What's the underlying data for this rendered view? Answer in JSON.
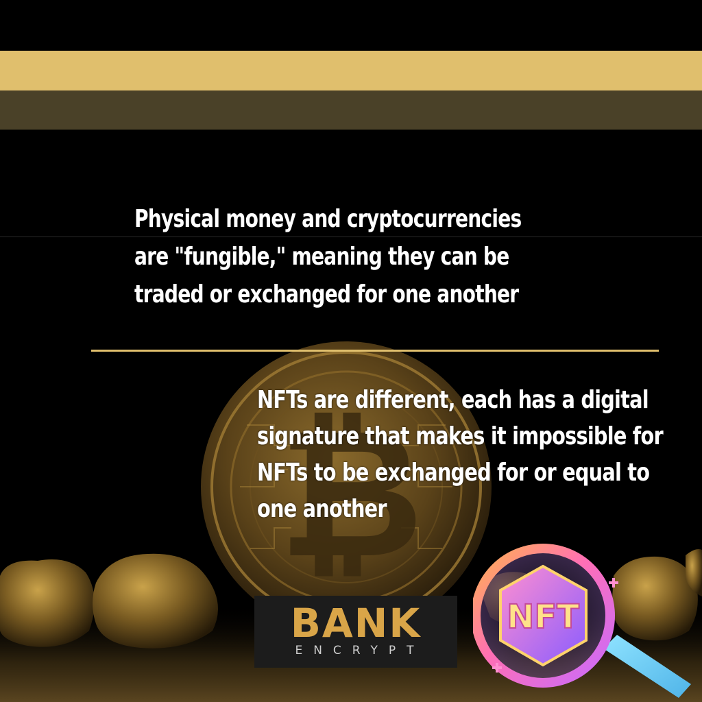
{
  "paragraphs": {
    "top": [
      "Physical money and cryptocurrencies",
      "are \"fungible,\" meaning they can be",
      "traded or exchanged for one another"
    ],
    "bottom": [
      "NFTs are different, each has a digital",
      "signature that makes it impossible for",
      "NFTs to be exchanged for or equal to",
      "one another"
    ]
  },
  "logo": {
    "main": "BANK",
    "sub": "ENCRYPT"
  },
  "nft_badge": {
    "label": "NFT"
  },
  "colors": {
    "gold": "#e0bf6d",
    "olive": "#4a4128",
    "logo_gold": "#d9a548",
    "background": "#000000"
  }
}
